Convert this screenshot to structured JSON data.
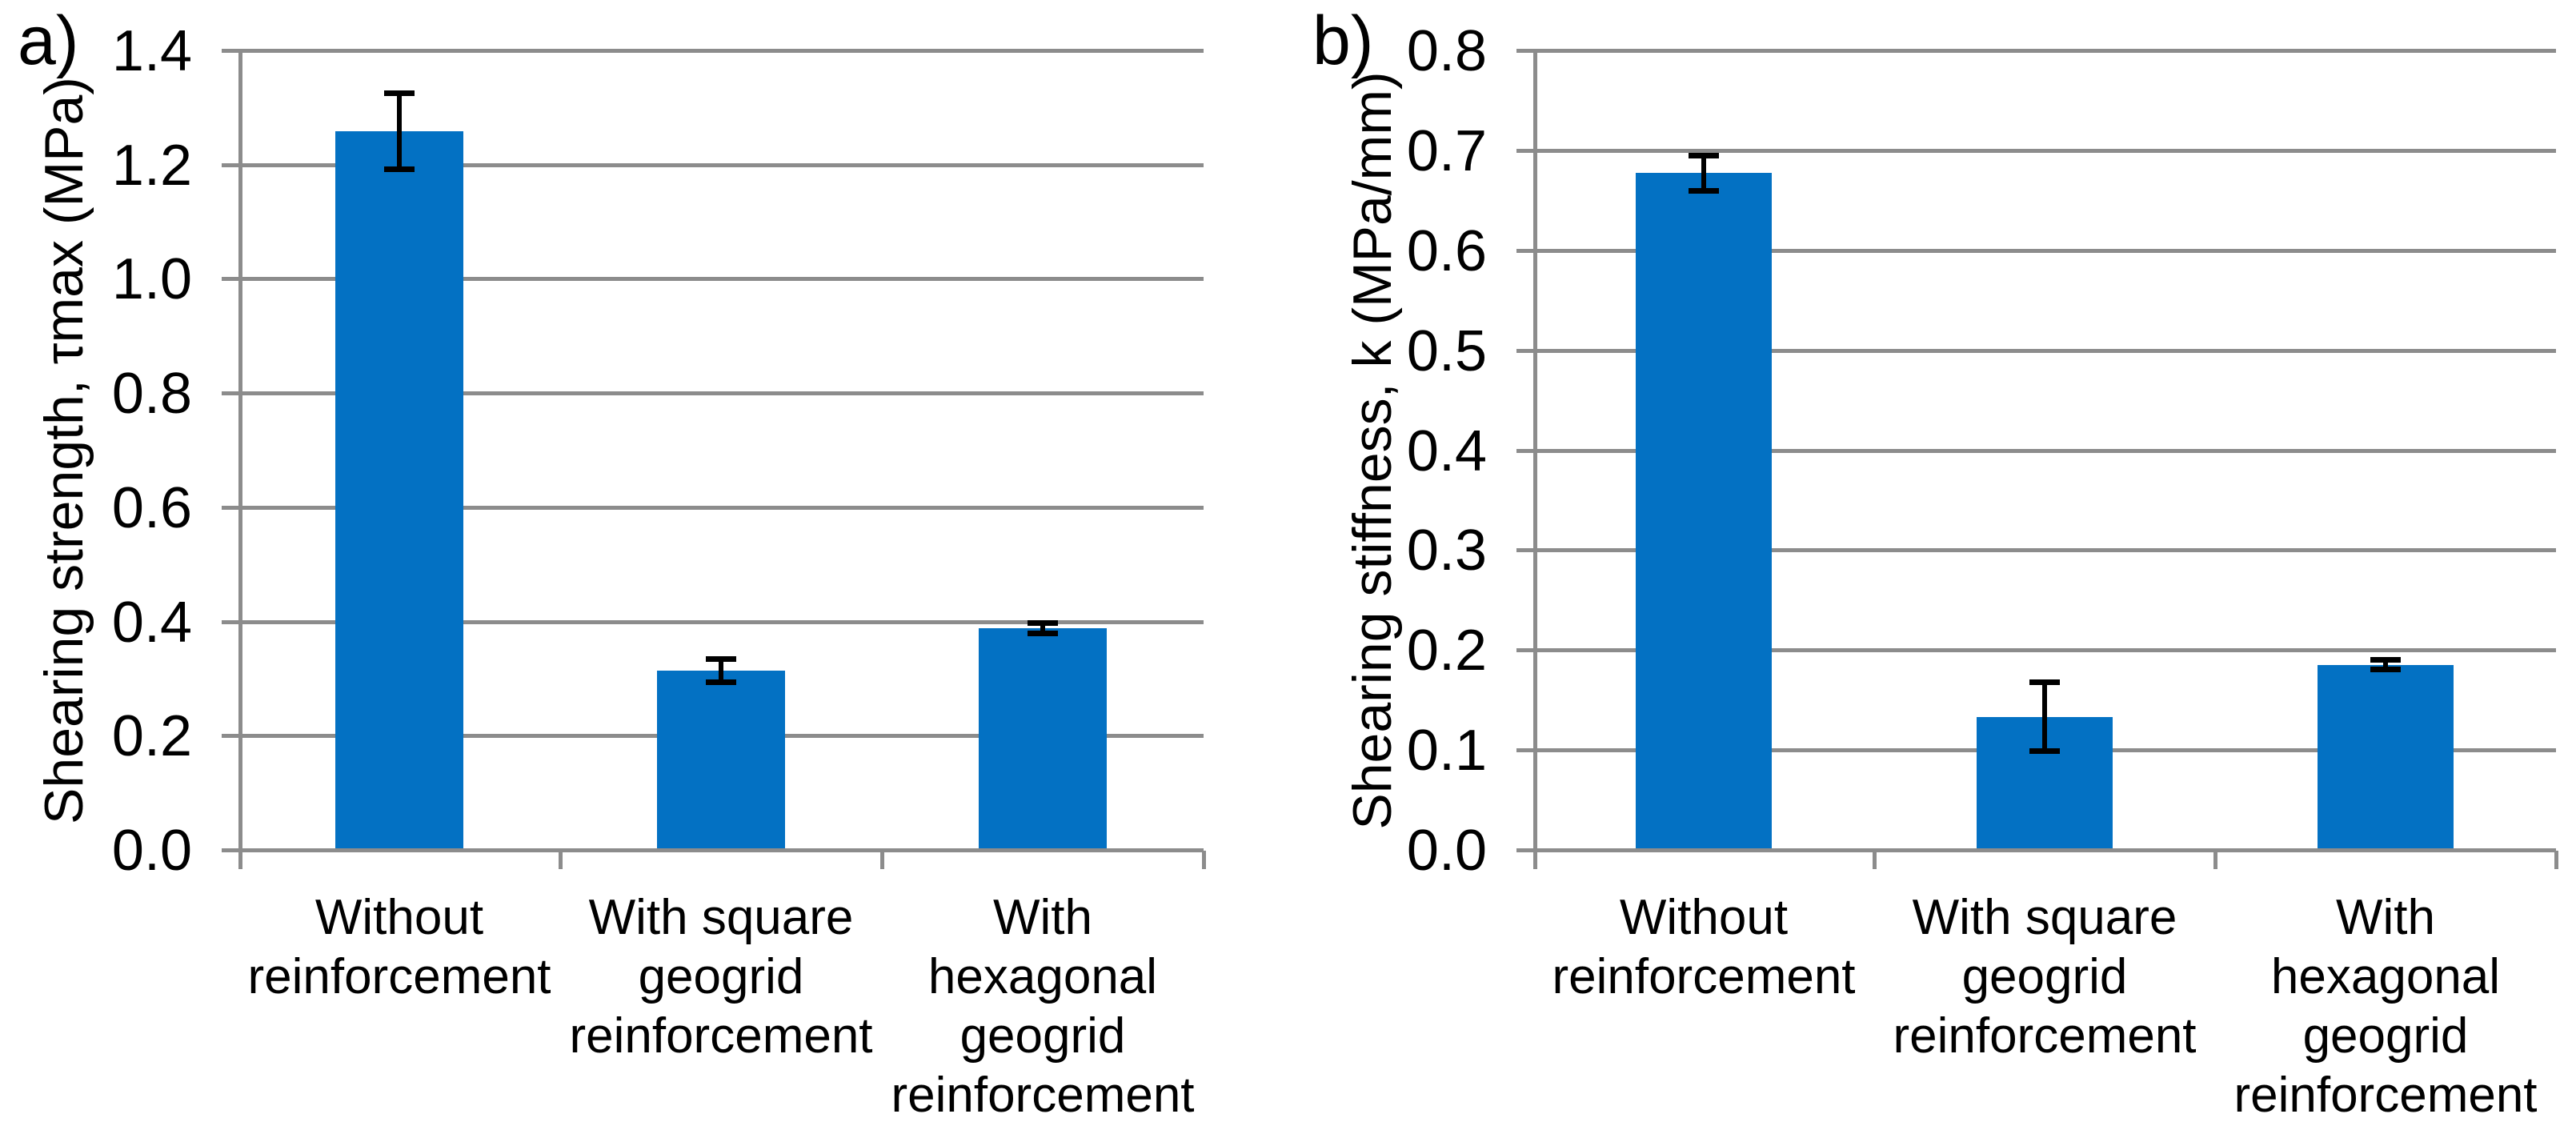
{
  "figure": {
    "background": "#ffffff",
    "bar_color": "#0371C3",
    "grid_color": "#8C8C8C",
    "axis_color": "#8C8C8C",
    "error_bar_color": "#000000",
    "text_color": "#000000"
  },
  "chart_data": [
    {
      "type": "bar",
      "panel_label": "a)",
      "title": "",
      "xlabel": "",
      "ylabel": "Shearing strength, τmax (MPa)",
      "categories": [
        "Without\nreinforcement",
        "With square\ngeogrid\nreinforcement",
        "With\nhexagonal\ngeogrid\nreinforcement"
      ],
      "values": [
        1.26,
        0.315,
        0.39
      ],
      "error_bars": [
        0.067,
        0.021,
        0.01
      ],
      "ylim": [
        0.0,
        1.4
      ],
      "ytick_step": 0.2,
      "ytick_labels": [
        "0.0",
        "0.2",
        "0.4",
        "0.6",
        "0.8",
        "1.0",
        "1.2",
        "1.4"
      ],
      "grid": true,
      "legend": null
    },
    {
      "type": "bar",
      "panel_label": "b)",
      "title": "",
      "xlabel": "",
      "ylabel": "Shearing stiffness, k (MPa/mm)",
      "categories": [
        "Without\nreinforcement",
        "With square\ngeogrid\nreinforcement",
        "With\nhexagonal\ngeogrid\nreinforcement"
      ],
      "values": [
        0.678,
        0.134,
        0.186
      ],
      "error_bars": [
        0.018,
        0.035,
        0.005
      ],
      "ylim": [
        0.0,
        0.8
      ],
      "ytick_step": 0.1,
      "ytick_labels": [
        "0.0",
        "0.1",
        "0.2",
        "0.3",
        "0.4",
        "0.5",
        "0.6",
        "0.7",
        "0.8"
      ],
      "grid": true,
      "legend": null
    }
  ]
}
